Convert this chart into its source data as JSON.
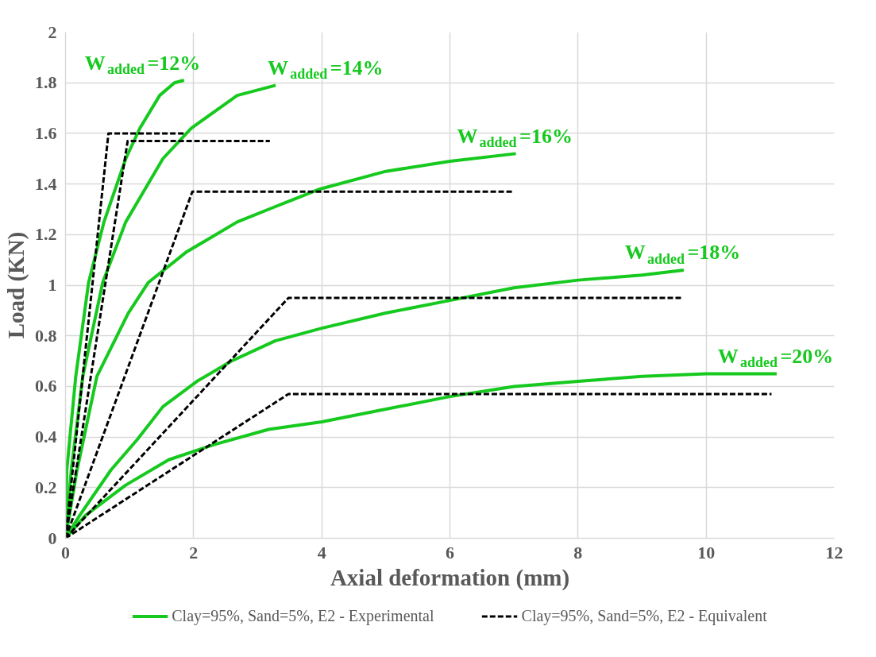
{
  "chart_data": {
    "type": "line",
    "xlabel": "Axial deformation (mm)",
    "ylabel": "Load (KN)",
    "xlim": [
      0,
      12
    ],
    "ylim": [
      0,
      2
    ],
    "xticks": [
      0,
      2,
      4,
      6,
      8,
      10,
      12
    ],
    "yticks": [
      0,
      0.2,
      0.4,
      0.6,
      0.8,
      1,
      1.2,
      1.4,
      1.6,
      1.8,
      2
    ],
    "grid": true,
    "legend": "bottom",
    "marker": "none",
    "series": [
      {
        "name": "Clay=95%, Sand=5%, E2 - Experimental",
        "color": "#16c91e",
        "line_style": "solid",
        "x": [
          0,
          0.01,
          0.02,
          0.16,
          0.36,
          0.6,
          0.94,
          1.16,
          1.47,
          1.7,
          1.85
        ],
        "values": [
          0,
          0.15,
          0.27,
          0.64,
          1.01,
          1.25,
          1.5,
          1.62,
          1.75,
          1.8,
          1.81
        ]
      },
      {
        "color": "#16c91e",
        "line_style": "solid",
        "x": [
          0,
          0.09,
          0.27,
          0.58,
          0.94,
          1.52,
          1.96,
          2.68,
          3.28
        ],
        "values": [
          0,
          0.27,
          0.64,
          1.01,
          1.25,
          1.5,
          1.62,
          1.75,
          1.79
        ]
      },
      {
        "color": "#16c91e",
        "line_style": "solid",
        "x": [
          0,
          0.18,
          0.49,
          0.98,
          1.29,
          1.88,
          2.68,
          3.27,
          3.97,
          5,
          6,
          7.03
        ],
        "values": [
          0,
          0.27,
          0.64,
          0.89,
          1.01,
          1.13,
          1.25,
          1.31,
          1.38,
          1.45,
          1.49,
          1.52
        ]
      },
      {
        "color": "#16c91e",
        "line_style": "solid",
        "x": [
          0,
          0.22,
          0.71,
          1.12,
          1.52,
          2.05,
          2.59,
          3.27,
          4,
          5,
          6,
          7,
          8,
          9,
          9.65
        ],
        "values": [
          0,
          0.09,
          0.27,
          0.39,
          0.52,
          0.62,
          0.7,
          0.78,
          0.83,
          0.89,
          0.94,
          0.99,
          1.02,
          1.04,
          1.06
        ]
      },
      {
        "color": "#16c91e",
        "line_style": "solid",
        "x": [
          0,
          0.31,
          0.94,
          1.61,
          2.32,
          3.17,
          4,
          5,
          6,
          7,
          8,
          9,
          10,
          11.1
        ],
        "values": [
          0,
          0.09,
          0.21,
          0.31,
          0.37,
          0.43,
          0.46,
          0.51,
          0.56,
          0.6,
          0.62,
          0.64,
          0.65,
          0.65
        ]
      },
      {
        "name": "Clay=95%, Sand=5%, E2 - Equivalent",
        "color": "#000000",
        "line_style": "dashed",
        "x": [
          0,
          0.67,
          1.88
        ],
        "values": [
          0,
          1.6,
          1.6
        ]
      },
      {
        "color": "#000000",
        "line_style": "dashed",
        "x": [
          0,
          0.97,
          3.19
        ],
        "values": [
          0,
          1.57,
          1.57
        ]
      },
      {
        "color": "#000000",
        "line_style": "dashed",
        "x": [
          0,
          1.98,
          6.98
        ],
        "values": [
          0,
          1.37,
          1.37
        ]
      },
      {
        "color": "#000000",
        "line_style": "dashed",
        "x": [
          0,
          3.48,
          9.64
        ],
        "values": [
          0,
          0.95,
          0.95
        ]
      },
      {
        "color": "#000000",
        "line_style": "dashed",
        "x": [
          0,
          3.48,
          11.02
        ],
        "values": [
          0,
          0.57,
          0.57
        ]
      }
    ],
    "annotations": [
      {
        "text": "W$_{added}$=12%",
        "x": 1.85,
        "y": 1.81
      },
      {
        "text": "W$_{added}$=14%",
        "x": 3.28,
        "y": 1.79
      },
      {
        "text": "W$_{added}$=16%",
        "x": 7.03,
        "y": 1.52
      },
      {
        "text": "W$_{added}$=18%",
        "x": 9.65,
        "y": 1.06
      },
      {
        "text": "W$_{added}$=20%",
        "x": 11.1,
        "y": 0.65
      }
    ]
  }
}
